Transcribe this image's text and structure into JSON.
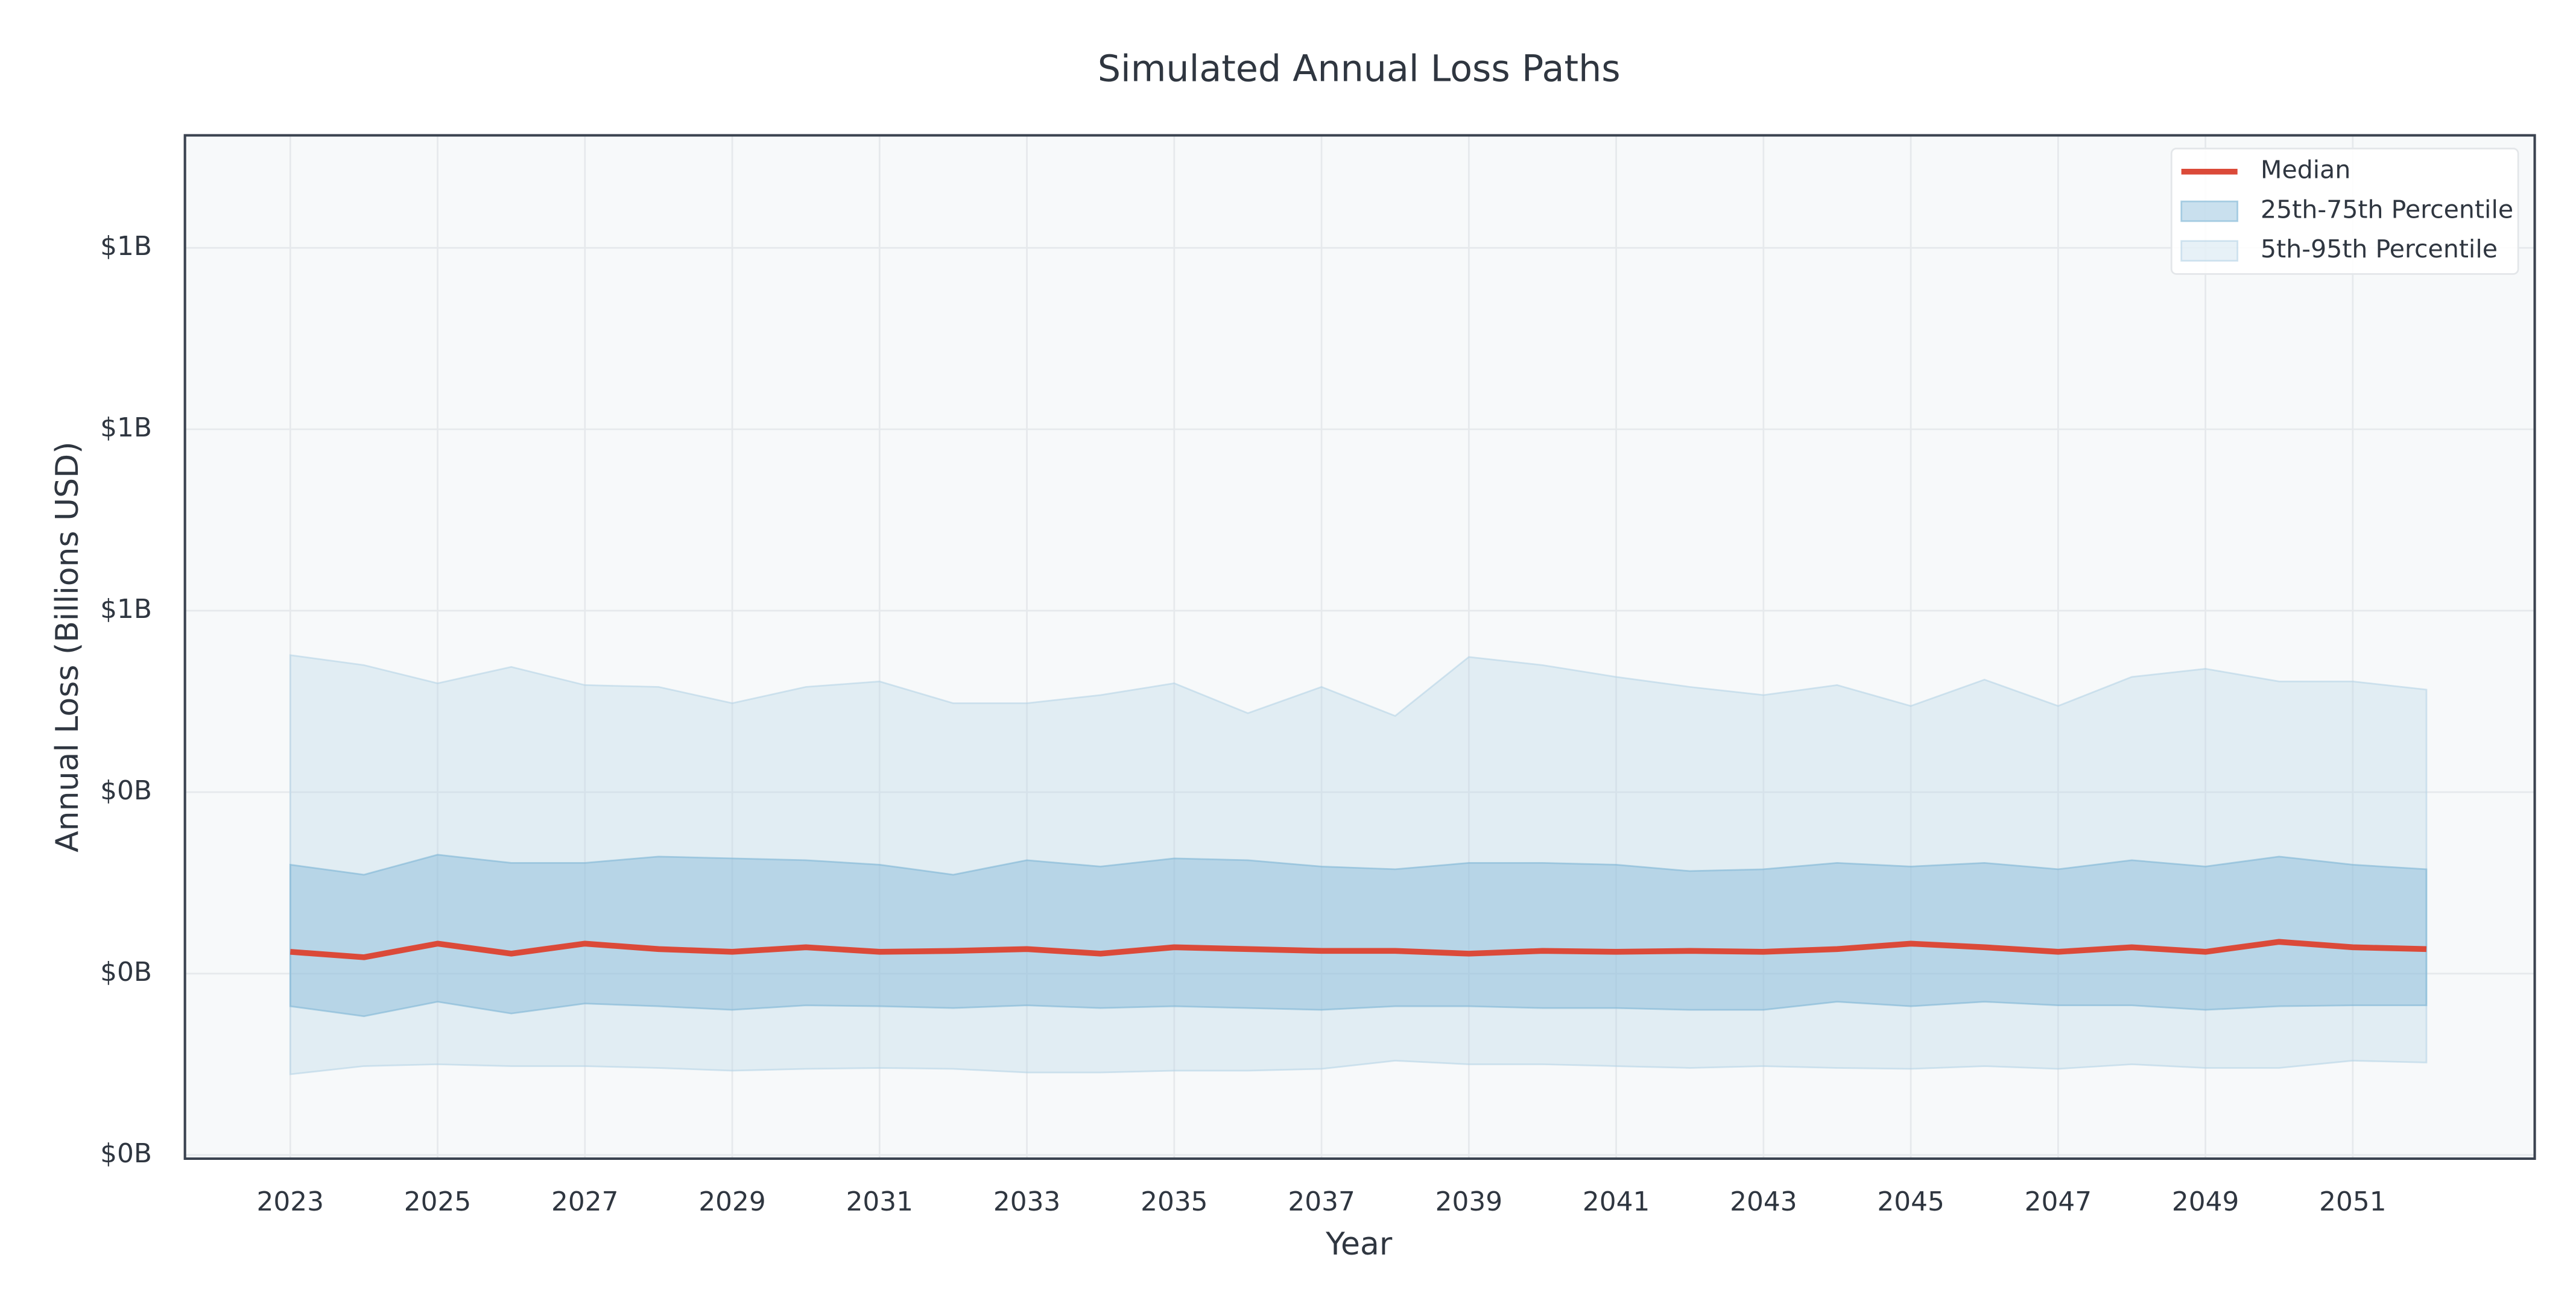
{
  "chart_data": {
    "type": "line",
    "title": "Simulated Annual Loss Paths",
    "x_label": "Year",
    "y_label": "Annual Loss (Billions USD)",
    "x": [
      2023,
      2024,
      2025,
      2026,
      2027,
      2028,
      2029,
      2030,
      2031,
      2032,
      2033,
      2034,
      2035,
      2036,
      2037,
      2038,
      2039,
      2040,
      2041,
      2042,
      2043,
      2044,
      2045,
      2046,
      2047,
      2048,
      2049,
      2050,
      2051,
      2052
    ],
    "series": [
      {
        "name": "Median",
        "color": "#db4a39",
        "values": [
          0.224,
          0.218,
          0.233,
          0.222,
          0.233,
          0.227,
          0.224,
          0.229,
          0.224,
          0.225,
          0.227,
          0.222,
          0.229,
          0.227,
          0.225,
          0.225,
          0.222,
          0.225,
          0.224,
          0.225,
          0.224,
          0.227,
          0.233,
          0.229,
          0.224,
          0.229,
          0.224,
          0.235,
          0.229,
          0.227
        ]
      }
    ],
    "bands": [
      {
        "name": "25th-75th Percentile",
        "color": "#7fb6d6",
        "lower": [
          0.164,
          0.153,
          0.169,
          0.156,
          0.167,
          0.164,
          0.16,
          0.165,
          0.164,
          0.162,
          0.165,
          0.162,
          0.164,
          0.162,
          0.16,
          0.164,
          0.164,
          0.162,
          0.162,
          0.16,
          0.16,
          0.169,
          0.164,
          0.169,
          0.165,
          0.165,
          0.16,
          0.164,
          0.165,
          0.165
        ],
        "upper": [
          0.32,
          0.309,
          0.331,
          0.322,
          0.322,
          0.329,
          0.327,
          0.325,
          0.32,
          0.309,
          0.325,
          0.318,
          0.327,
          0.325,
          0.318,
          0.315,
          0.322,
          0.322,
          0.32,
          0.313,
          0.315,
          0.322,
          0.318,
          0.322,
          0.315,
          0.325,
          0.318,
          0.329,
          0.32,
          0.315
        ]
      },
      {
        "name": "5th-95th Percentile",
        "color": "#b5d3e6",
        "lower": [
          0.089,
          0.098,
          0.1,
          0.098,
          0.098,
          0.096,
          0.093,
          0.095,
          0.096,
          0.095,
          0.091,
          0.091,
          0.093,
          0.093,
          0.095,
          0.104,
          0.1,
          0.1,
          0.098,
          0.096,
          0.098,
          0.096,
          0.095,
          0.098,
          0.095,
          0.1,
          0.096,
          0.096,
          0.104,
          0.102
        ],
        "upper": [
          0.551,
          0.54,
          0.52,
          0.538,
          0.518,
          0.516,
          0.498,
          0.516,
          0.522,
          0.498,
          0.498,
          0.507,
          0.52,
          0.487,
          0.516,
          0.484,
          0.549,
          0.54,
          0.527,
          0.516,
          0.507,
          0.518,
          0.495,
          0.524,
          0.495,
          0.527,
          0.536,
          0.522,
          0.522,
          0.513
        ]
      }
    ],
    "xlim": [
      2021.57,
      2053.47
    ],
    "ylim": [
      -0.004,
      1.124
    ],
    "xticks": [
      2023,
      2025,
      2027,
      2029,
      2031,
      2033,
      2035,
      2037,
      2039,
      2041,
      2043,
      2045,
      2047,
      2049,
      2051
    ],
    "yticks": [
      {
        "value": 0,
        "label": "$0B"
      },
      {
        "value": 0.2,
        "label": "$0B"
      },
      {
        "value": 0.4,
        "label": "$0B"
      },
      {
        "value": 0.6,
        "label": "$1B"
      },
      {
        "value": 0.8,
        "label": "$1B"
      },
      {
        "value": 1.0,
        "label": "$1B"
      }
    ],
    "grid": true,
    "legend": "upper right"
  }
}
